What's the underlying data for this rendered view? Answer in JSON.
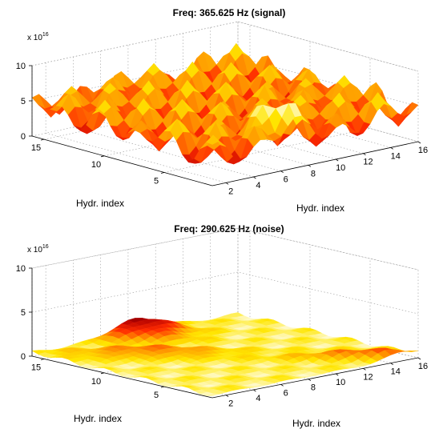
{
  "figure": {
    "panels": [
      {
        "title": "Freq: 365.625 Hz (signal)",
        "exponent_base": "x 10",
        "exponent_power": "16",
        "xlabel": "Hydr. index",
        "ylabel": "Hydr. index"
      },
      {
        "title": "Freq: 290.625 Hz (noise)",
        "exponent_base": "x 10",
        "exponent_power": "16",
        "xlabel": "Hydr. index",
        "ylabel": "Hydr. index"
      }
    ]
  },
  "colors": {
    "colormap": [
      "#000000",
      "#b00000",
      "#ff2a00",
      "#ff9a00",
      "#ffe600",
      "#ffffff"
    ],
    "grid": "#9a9a9a",
    "axes": "#000000"
  },
  "chart_data": [
    {
      "type": "surface",
      "title": "Freq: 365.625 Hz (signal)",
      "xlabel": "Hydr. index",
      "ylabel": "Hydr. index",
      "zscale_label": "x 10^16",
      "xlim": [
        1,
        16
      ],
      "ylim": [
        1,
        16
      ],
      "zlim": [
        0,
        10
      ],
      "xticks": [
        2,
        4,
        6,
        8,
        10,
        12,
        14,
        16
      ],
      "yticks": [
        5,
        10,
        15
      ],
      "zticks": [
        0,
        5,
        10
      ],
      "grid": true,
      "z_profile": {
        "shape": "egg-crate",
        "base_level": 4.5,
        "peak_level": 9,
        "trough_level": 2,
        "center_peak_level": 8
      }
    },
    {
      "type": "surface",
      "title": "Freq: 290.625 Hz (noise)",
      "xlabel": "Hydr. index",
      "ylabel": "Hydr. index",
      "zscale_label": "x 10^16",
      "xlim": [
        1,
        16
      ],
      "ylim": [
        1,
        16
      ],
      "zlim": [
        0,
        10
      ],
      "xticks": [
        2,
        4,
        6,
        8,
        10,
        12,
        14,
        16
      ],
      "yticks": [
        5,
        10,
        15
      ],
      "zticks": [
        0,
        5,
        10
      ],
      "grid": true,
      "z_profile": {
        "shape": "low flat with diagonal ridge",
        "base_level": 0.3,
        "ridge_peak_level": 2
      }
    }
  ]
}
